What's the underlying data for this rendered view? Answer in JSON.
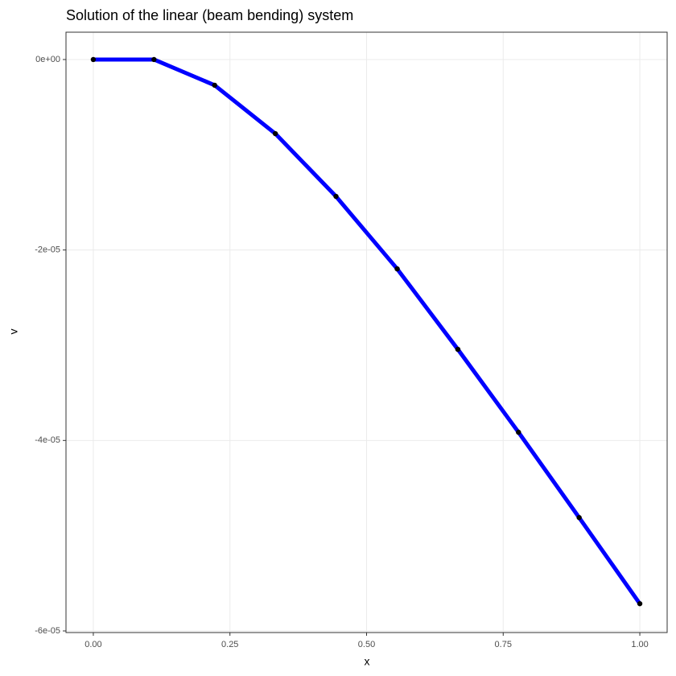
{
  "chart_data": {
    "type": "line",
    "title": "Solution of the linear (beam bending) system",
    "x_label": "x",
    "y_label": "v",
    "x": [
      0,
      0.111,
      0.222,
      0.333,
      0.444,
      0.556,
      0.667,
      0.778,
      0.889,
      1
    ],
    "values": [
      0,
      0,
      -2.7e-06,
      -7.78e-06,
      -1.437e-05,
      -2.198e-05,
      -3.043e-05,
      -3.914e-05,
      -4.81e-05,
      -5.714e-05
    ],
    "color": "#0000ff",
    "point_color": "#000000",
    "xlim": [
      -0.05,
      1.05
    ],
    "xticks": [
      {
        "value": 0,
        "label": "0.00"
      },
      {
        "value": 0.25,
        "label": "0.25"
      },
      {
        "value": 0.5,
        "label": "0.50"
      },
      {
        "value": 0.75,
        "label": "0.75"
      },
      {
        "value": 1,
        "label": "1.00"
      }
    ],
    "ylim": [
      -6.017e-05,
      2.87e-06
    ],
    "yticks": [
      {
        "value": 0,
        "label": "0e+00"
      },
      {
        "value": -2e-05,
        "label": "-2e-05"
      },
      {
        "value": -4e-05,
        "label": "-4e-05"
      },
      {
        "value": -6e-05,
        "label": "-6e-05"
      }
    ],
    "grid": true
  }
}
